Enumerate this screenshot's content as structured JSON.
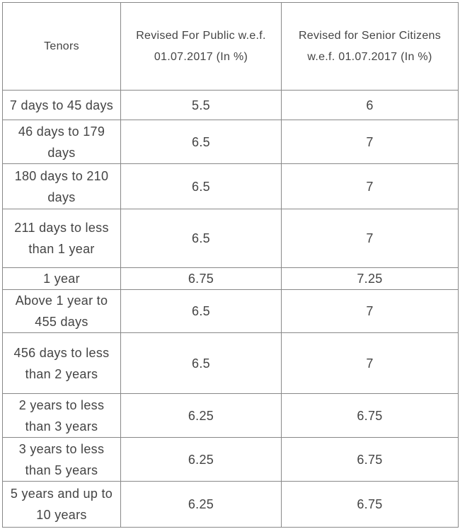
{
  "table": {
    "header": [
      "Tenors",
      "Revised For Public w.e.f. 01.07.2017 (In %)",
      "Revised for Senior Citizens w.e.f. 01.07.2017 (In %)"
    ],
    "rows": [
      [
        "7 days to 45 days",
        5.5,
        6
      ],
      [
        "46 days to 179 days",
        6.5,
        7
      ],
      [
        "180 days to 210 days",
        6.5,
        7
      ],
      [
        "211 days to less than 1 year",
        6.5,
        7
      ],
      [
        "1 year",
        6.75,
        7.25
      ],
      [
        "Above 1 year to 455 days",
        6.5,
        7
      ],
      [
        "456 days to less than 2 years",
        6.5,
        7
      ],
      [
        "2 years to less than 3 years",
        6.25,
        6.75
      ],
      [
        "3 years to less than 5 years",
        6.25,
        6.75
      ],
      [
        "5 years and up to 10 years",
        6.25,
        6.75
      ]
    ]
  }
}
